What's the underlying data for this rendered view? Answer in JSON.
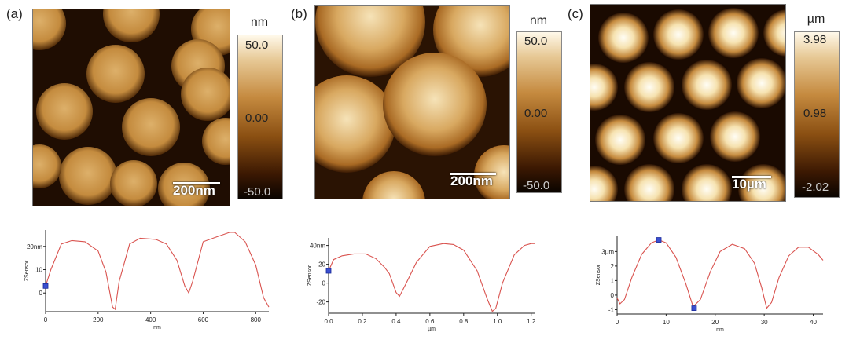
{
  "panels": [
    {
      "label": "(a)",
      "scalebar": "200nm",
      "colorbar": {
        "unit": "nm",
        "top": "50.0",
        "mid": "0.00",
        "bottom": "-50.0"
      },
      "profile": {
        "ylabel": "ZSensor",
        "xlabel": "nm",
        "ytick_labels": [
          "20nm",
          "10",
          "0"
        ],
        "xtick_labels": [
          "0",
          "200",
          "400",
          "600",
          "800"
        ]
      }
    },
    {
      "label": "(b)",
      "scalebar": "200nm",
      "colorbar": {
        "unit": "nm",
        "top": "50.0",
        "mid": "0.00",
        "bottom": "-50.0"
      },
      "profile": {
        "ylabel": "ZSensor",
        "xlabel": "µm",
        "ytick_labels": [
          "40nm",
          "20",
          "0",
          "-20"
        ],
        "xtick_labels": [
          "0.0",
          "0.2",
          "0.4",
          "0.6",
          "0.8",
          "1.0",
          "1.2"
        ]
      }
    },
    {
      "label": "(c)",
      "scalebar": "10µm",
      "colorbar": {
        "unit": "µm",
        "top": "3.98",
        "mid": "0.98",
        "bottom": "-2.02"
      },
      "profile": {
        "ylabel": "ZSensor",
        "xlabel": "nm",
        "ytick_labels": [
          "3µm",
          "2",
          "1",
          "0",
          "-1"
        ],
        "xtick_labels": [
          "0",
          "10",
          "20",
          "30",
          "40"
        ]
      }
    }
  ],
  "chart_data": [
    {
      "type": "line",
      "ylabel": "ZSensor",
      "xlabel": "nm",
      "ylim": [
        -8,
        27
      ],
      "xlim": [
        0,
        850
      ],
      "series": [
        {
          "x": [
            0,
            20,
            60,
            100,
            150,
            200,
            230,
            255,
            265,
            280,
            320,
            360,
            420,
            460,
            500,
            530,
            545,
            560,
            600,
            650,
            700,
            720,
            760,
            800,
            830,
            850
          ],
          "y": [
            3,
            10,
            21,
            22.5,
            22,
            18,
            9,
            -6,
            -7,
            5,
            21,
            23.5,
            23,
            21,
            14,
            3,
            0,
            5,
            22,
            24,
            26,
            26,
            22,
            12,
            -2,
            -6
          ]
        }
      ],
      "markers": [
        {
          "x": 0,
          "y": 3
        }
      ]
    },
    {
      "type": "line",
      "ylabel": "ZSensor",
      "xlabel": "µm",
      "ylim": [
        -32,
        48
      ],
      "xlim": [
        0,
        1.22
      ],
      "series": [
        {
          "x": [
            0,
            0.03,
            0.08,
            0.15,
            0.22,
            0.28,
            0.33,
            0.36,
            0.4,
            0.42,
            0.46,
            0.52,
            0.6,
            0.68,
            0.74,
            0.8,
            0.88,
            0.94,
            0.97,
            0.99,
            1.03,
            1.1,
            1.16,
            1.2,
            1.22
          ],
          "y": [
            13,
            25,
            29,
            31,
            31,
            26,
            17,
            10,
            -10,
            -14,
            0,
            22,
            39,
            42,
            41,
            35,
            13,
            -17,
            -30,
            -27,
            0,
            30,
            40,
            42,
            42
          ]
        }
      ],
      "markers": [
        {
          "x": 0,
          "y": 13
        }
      ]
    },
    {
      "type": "line",
      "ylabel": "ZSensor",
      "xlabel": "nm",
      "ylim": [
        -1.3,
        4.1
      ],
      "xlim": [
        0,
        42
      ],
      "series": [
        {
          "x": [
            0,
            0.6,
            1.5,
            3,
            5,
            7,
            8.5,
            10,
            12,
            14,
            15.5,
            17,
            19,
            21,
            23.5,
            26,
            28,
            29.5,
            30.5,
            31.5,
            33,
            35,
            37,
            39,
            41,
            42
          ],
          "y": [
            -0.2,
            -0.6,
            -0.3,
            1.2,
            2.8,
            3.6,
            3.8,
            3.6,
            2.6,
            0.8,
            -0.8,
            -0.3,
            1.6,
            3,
            3.5,
            3.2,
            2.2,
            0.5,
            -0.9,
            -0.5,
            1.2,
            2.7,
            3.3,
            3.3,
            2.8,
            2.4
          ]
        }
      ],
      "markers": [
        {
          "x": 8.5,
          "y": 3.8
        },
        {
          "x": 15.7,
          "y": -0.9
        }
      ]
    }
  ]
}
